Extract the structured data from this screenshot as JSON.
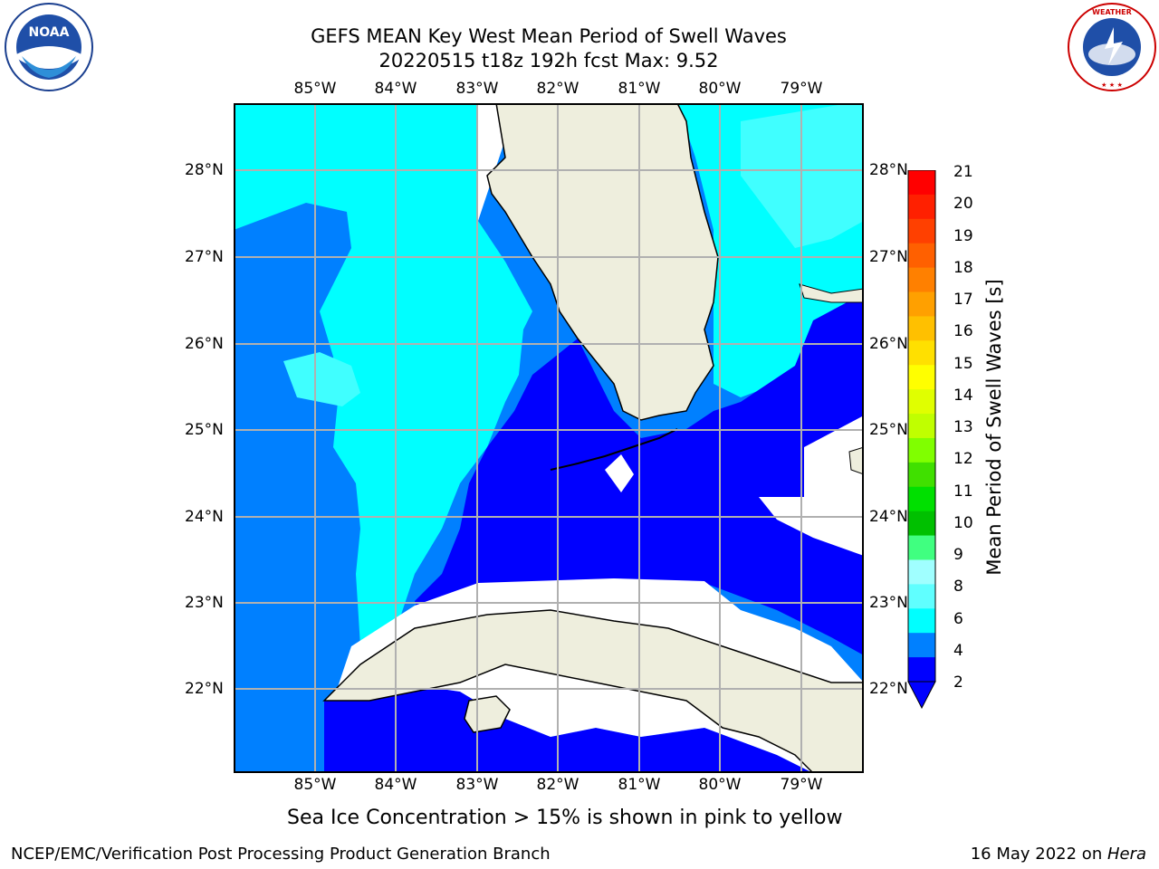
{
  "title": {
    "line1": "GEFS MEAN Key West Mean Period of Swell Waves",
    "line2": "20220515 t18z 192h fcst   Max: 9.52"
  },
  "logos": {
    "left": "NOAA",
    "right": "NATIONAL WEATHER SERVICE"
  },
  "map": {
    "lon_labels": [
      "85°W",
      "84°W",
      "83°W",
      "82°W",
      "81°W",
      "80°W",
      "79°W"
    ],
    "lat_labels": [
      "28°N",
      "27°N",
      "26°N",
      "25°N",
      "24°N",
      "23°N",
      "22°N"
    ],
    "colors": {
      "ocean_deep": "#0000ff",
      "ocean_mid": "#0080ff",
      "ocean_light": "#00ffff",
      "ocean_pale": "#40ffff",
      "land": "#eeeedd",
      "grid": "#b0b0b0"
    }
  },
  "colorbar": {
    "ticks": [
      "21",
      "20",
      "19",
      "18",
      "17",
      "16",
      "15",
      "14",
      "13",
      "12",
      "11",
      "10",
      "9",
      "8",
      "6",
      "4",
      "2"
    ],
    "label": "Mean Period of Swell Waves [s]",
    "colors": [
      "#ff0000",
      "#ff2000",
      "#ff4000",
      "#ff6000",
      "#ff8000",
      "#ffa000",
      "#ffc000",
      "#ffe000",
      "#ffff00",
      "#e0ff00",
      "#c0ff00",
      "#80ff00",
      "#40e000",
      "#00e000",
      "#00c000",
      "#40ff80",
      "#a0ffff",
      "#60ffff",
      "#00ffff",
      "#0080ff",
      "#0000ff"
    ]
  },
  "footer": {
    "note": "Sea Ice Concentration > 15% is shown in pink to yellow",
    "left": "NCEP/EMC/Verification Post Processing Product Generation Branch",
    "right_date": "16 May 2022 on ",
    "right_host": "Hera"
  }
}
